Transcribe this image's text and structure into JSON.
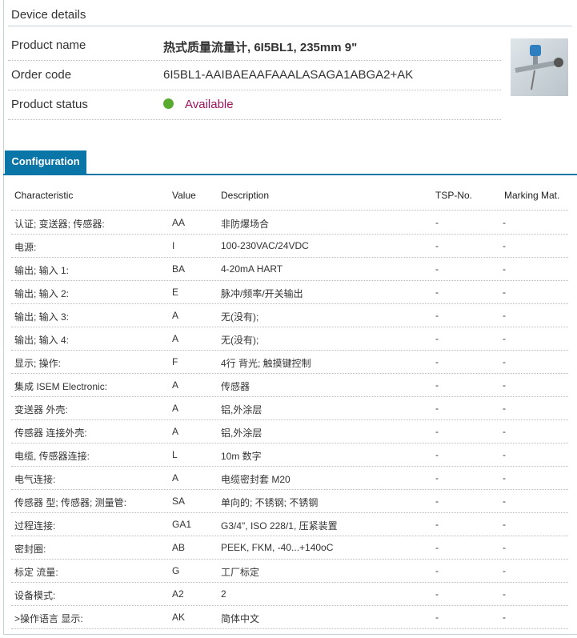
{
  "device": {
    "title": "Device details",
    "product_name_label": "Product name",
    "product_name": "热式质量流量计, 6I5BL1, 235mm 9\"",
    "order_code_label": "Order code",
    "order_code": "6I5BL1-AAIBAEAAFAAALASAGA1ABGA2+AK",
    "status_label": "Product status",
    "status": "Available",
    "status_color": "#5aaa32",
    "status_text_color": "#a0125e"
  },
  "tab": {
    "label": "Configuration",
    "color": "#0a76a8"
  },
  "table": {
    "headers": [
      "Characteristic",
      "Value",
      "Description",
      "TSP-No.",
      "Marking Mat."
    ],
    "rows": [
      [
        "认证; 变送器; 传感器:",
        "AA",
        "非防爆场合",
        "-",
        "-"
      ],
      [
        "电源:",
        "I",
        "100-230VAC/24VDC",
        "-",
        "-"
      ],
      [
        "输出; 输入 1:",
        "BA",
        "4-20mA HART",
        "-",
        "-"
      ],
      [
        "输出; 输入 2:",
        "E",
        "脉冲/频率/开关输出",
        "-",
        "-"
      ],
      [
        "输出; 输入 3:",
        "A",
        "无(没有);",
        "-",
        "-"
      ],
      [
        "输出; 输入 4:",
        "A",
        "无(没有);",
        "-",
        "-"
      ],
      [
        "显示; 操作:",
        "F",
        "4行 背光; 触摸键控制",
        "-",
        "-"
      ],
      [
        "集成 ISEM Electronic:",
        "A",
        "传感器",
        "-",
        "-"
      ],
      [
        "变送器 外壳:",
        "A",
        "铝,外涂层",
        "-",
        "-"
      ],
      [
        "传感器 连接外壳:",
        "A",
        "铝,外涂层",
        "-",
        "-"
      ],
      [
        "电缆, 传感器连接:",
        "L",
        "10m 数字",
        "-",
        "-"
      ],
      [
        "电气连接:",
        "A",
        "电缆密封套 M20",
        "-",
        "-"
      ],
      [
        "传感器 型; 传感器; 测量管:",
        "SA",
        "单向的; 不锈钢; 不锈钢",
        "-",
        "-"
      ],
      [
        "过程连接:",
        "GA1",
        "G3/4\", ISO 228/1, 压紧装置",
        "-",
        "-"
      ],
      [
        "密封圈:",
        "AB",
        "PEEK, FKM, -40...+140oC",
        "-",
        "-"
      ],
      [
        "标定 流量:",
        "G",
        "工厂标定",
        "-",
        "-"
      ],
      [
        "设备模式:",
        "A2",
        "2",
        "-",
        "-"
      ],
      [
        ">操作语言 显示:",
        "AK",
        "简体中文",
        "-",
        "-"
      ]
    ]
  }
}
